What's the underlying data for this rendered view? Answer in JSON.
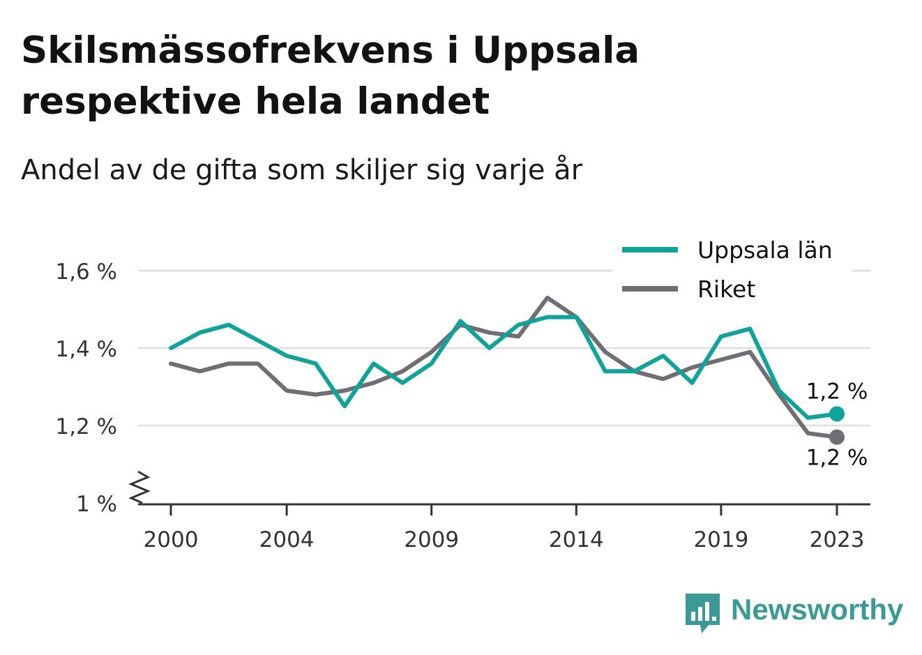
{
  "header": {
    "title": "Skilsmässofrekvens i Uppsala respektive hela landet",
    "subtitle": "Andel av de gifta som skiljer sig varje år"
  },
  "brand": {
    "name": "Newsworthy",
    "color": "#3c9a96",
    "icon": "newsworthy-logo-icon"
  },
  "colors": {
    "uppsala": "#0fa39a",
    "riket": "#6f6e74",
    "grid": "#dedede",
    "axis": "#333333"
  },
  "chart_data": {
    "type": "line",
    "title": "Skilsmässofrekvens i Uppsala respektive hela landet",
    "subtitle": "Andel av de gifta som skiljer sig varje år",
    "x": [
      2000,
      2001,
      2002,
      2003,
      2004,
      2005,
      2006,
      2007,
      2008,
      2009,
      2010,
      2011,
      2012,
      2013,
      2014,
      2015,
      2016,
      2017,
      2018,
      2019,
      2020,
      2021,
      2022,
      2023
    ],
    "x_ticks": [
      "2000",
      "2004",
      "2009",
      "2014",
      "2019",
      "2023"
    ],
    "x_tick_values": [
      2000,
      2004,
      2009,
      2014,
      2019,
      2023
    ],
    "y_ticks": [
      "1 %",
      "1,2 %",
      "1,4 %",
      "1,6 %"
    ],
    "y_tick_values": [
      1.0,
      1.2,
      1.4,
      1.6
    ],
    "ylim": [
      1.0,
      1.65
    ],
    "y_axis_break": true,
    "grid": true,
    "legend_position": "top-right",
    "series": [
      {
        "name": "Uppsala län",
        "color": "#0fa39a",
        "values": [
          1.4,
          1.44,
          1.46,
          1.42,
          1.38,
          1.36,
          1.25,
          1.36,
          1.31,
          1.36,
          1.47,
          1.4,
          1.46,
          1.48,
          1.48,
          1.34,
          1.34,
          1.38,
          1.31,
          1.43,
          1.45,
          1.29,
          1.22,
          1.23
        ],
        "end_label": "1,2 %"
      },
      {
        "name": "Riket",
        "color": "#6f6e74",
        "values": [
          1.36,
          1.34,
          1.36,
          1.36,
          1.29,
          1.28,
          1.29,
          1.31,
          1.34,
          1.39,
          1.46,
          1.44,
          1.43,
          1.53,
          1.48,
          1.39,
          1.34,
          1.32,
          1.35,
          1.37,
          1.39,
          1.28,
          1.18,
          1.17
        ],
        "end_label": "1,2 %"
      }
    ]
  }
}
